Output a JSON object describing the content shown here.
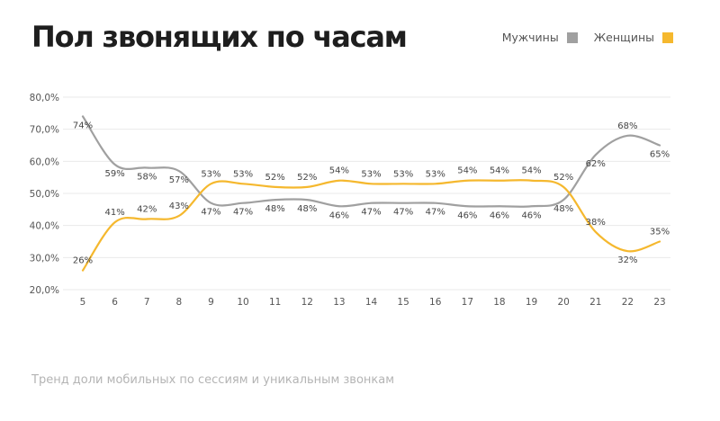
{
  "chart_data": {
    "type": "line",
    "title": "Пол звонящих по часам",
    "subtitle": "Тренд доли мобильных по сессиям и уникальным звонкам",
    "xlabel": "",
    "ylabel": "",
    "x": [
      5,
      6,
      7,
      8,
      9,
      10,
      11,
      12,
      13,
      14,
      15,
      16,
      17,
      18,
      19,
      20,
      21,
      22,
      23
    ],
    "ylim": [
      20,
      80
    ],
    "yticks": [
      20,
      30,
      40,
      50,
      60,
      70,
      80
    ],
    "ytick_labels": [
      "20,0%",
      "30,0%",
      "40,0%",
      "50,0%",
      "60,0%",
      "70,0%",
      "80,0%"
    ],
    "grid": true,
    "legend_position": "top-right",
    "series": [
      {
        "name": "Мужчины",
        "color": "#a0a0a0",
        "values": [
          74,
          59,
          58,
          57,
          47,
          47,
          48,
          48,
          46,
          47,
          47,
          47,
          46,
          46,
          46,
          48,
          62,
          68,
          65
        ],
        "labels": [
          "74%",
          "59%",
          "58%",
          "57%",
          "47%",
          "47%",
          "48%",
          "48%",
          "46%",
          "47%",
          "47%",
          "47%",
          "46%",
          "46%",
          "46%",
          "48%",
          "62%",
          "68%",
          "65%"
        ],
        "label_position": [
          "below",
          "below",
          "below",
          "below",
          "below",
          "below",
          "below",
          "below",
          "below",
          "below",
          "below",
          "below",
          "below",
          "below",
          "below",
          "below",
          "below",
          "above",
          "below"
        ]
      },
      {
        "name": "Женщины",
        "color": "#f5b82e",
        "values": [
          26,
          41,
          42,
          43,
          53,
          53,
          52,
          52,
          54,
          53,
          53,
          53,
          54,
          54,
          54,
          52,
          38,
          32,
          35
        ],
        "labels": [
          "26%",
          "41%",
          "42%",
          "43%",
          "53%",
          "53%",
          "52%",
          "52%",
          "54%",
          "53%",
          "53%",
          "53%",
          "54%",
          "54%",
          "54%",
          "52%",
          "38%",
          "32%",
          "35%"
        ],
        "label_position": [
          "above",
          "above",
          "above",
          "above",
          "above",
          "above",
          "above",
          "above",
          "above",
          "above",
          "above",
          "above",
          "above",
          "above",
          "above",
          "above",
          "above",
          "below",
          "above"
        ]
      }
    ]
  }
}
